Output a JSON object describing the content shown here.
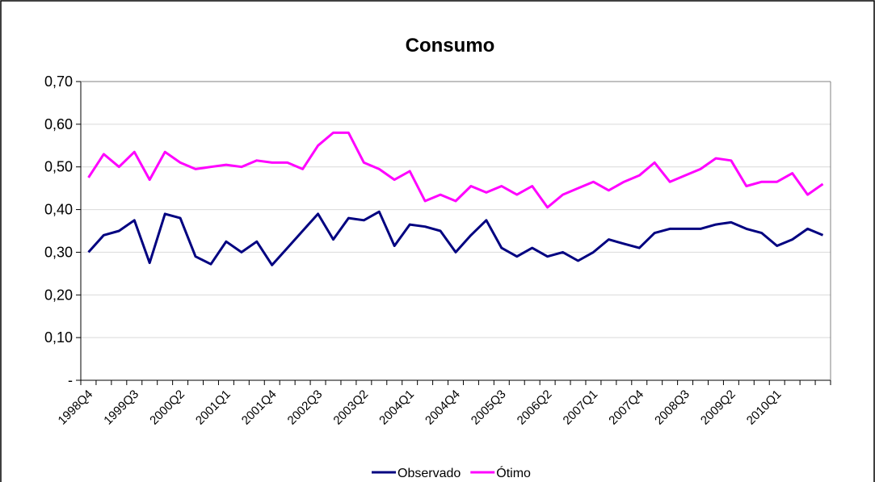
{
  "chart_data": {
    "type": "line",
    "title": "Consumo",
    "categories": [
      "1998Q4",
      null,
      null,
      "1999Q3",
      null,
      null,
      "2000Q2",
      null,
      null,
      "2001Q1",
      null,
      null,
      "2001Q4",
      null,
      null,
      "2002Q3",
      null,
      null,
      "2003Q2",
      null,
      null,
      "2004Q1",
      null,
      null,
      "2004Q4",
      null,
      null,
      "2005Q3",
      null,
      null,
      "2006Q2",
      null,
      null,
      "2007Q1",
      null,
      null,
      "2007Q4",
      null,
      null,
      "2008Q3",
      null,
      null,
      "2009Q2",
      null,
      null,
      "2010Q1",
      null,
      null,
      null
    ],
    "series": [
      {
        "name": "Observado",
        "color": "#000080",
        "values": [
          0.3,
          0.34,
          0.35,
          0.375,
          0.275,
          0.39,
          0.38,
          0.29,
          0.272,
          0.325,
          0.3,
          0.325,
          0.27,
          0.31,
          0.35,
          0.39,
          0.33,
          0.38,
          0.375,
          0.395,
          0.315,
          0.365,
          0.36,
          0.35,
          0.3,
          0.34,
          0.375,
          0.31,
          0.29,
          0.31,
          0.29,
          0.3,
          0.28,
          0.3,
          0.33,
          0.32,
          0.31,
          0.345,
          0.355,
          0.355,
          0.355,
          0.365,
          0.37,
          0.355,
          0.345,
          0.315,
          0.33,
          0.355,
          0.34
        ]
      },
      {
        "name": "Ótimo",
        "color": "#ff00ff",
        "values": [
          0.475,
          0.53,
          0.5,
          0.535,
          0.47,
          0.535,
          0.51,
          0.495,
          0.5,
          0.505,
          0.5,
          0.515,
          0.51,
          0.51,
          0.495,
          0.55,
          0.58,
          0.58,
          0.51,
          0.495,
          0.47,
          0.49,
          0.42,
          0.435,
          0.42,
          0.455,
          0.44,
          0.455,
          0.435,
          0.455,
          0.405,
          0.435,
          0.45,
          0.465,
          0.445,
          0.465,
          0.48,
          0.51,
          0.465,
          0.48,
          0.495,
          0.52,
          0.515,
          0.455,
          0.465,
          0.465,
          0.485,
          0.435,
          0.46
        ]
      }
    ],
    "ylim": [
      0,
      0.7
    ],
    "yticks": [
      {
        "value": 0,
        "label": "-"
      },
      {
        "value": 0.1,
        "label": "0,10"
      },
      {
        "value": 0.2,
        "label": "0,20"
      },
      {
        "value": 0.3,
        "label": "0,30"
      },
      {
        "value": 0.4,
        "label": "0,40"
      },
      {
        "value": 0.5,
        "label": "0,50"
      },
      {
        "value": 0.6,
        "label": "0,60"
      },
      {
        "value": 0.7,
        "label": "0,70"
      }
    ],
    "grid": true,
    "legend": "bottom"
  }
}
